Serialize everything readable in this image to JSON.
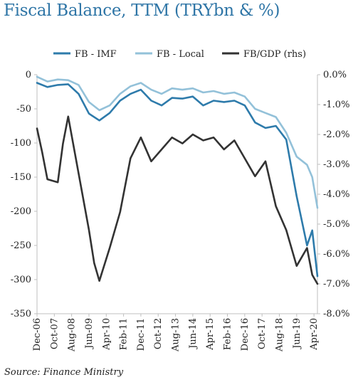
{
  "chart_data": {
    "type": "line",
    "title": "Fiscal Balance, TTM (TRYbn & %)",
    "source": "Source: Finance Ministry",
    "x_ticks": [
      "Dec-06",
      "Oct-07",
      "Aug-08",
      "Jun-09",
      "Apr-10",
      "Feb-11",
      "Dec-11",
      "Oct-12",
      "Aug-13",
      "Jun-14",
      "Apr-15",
      "Feb-16",
      "Dec-16",
      "Oct-17",
      "Aug-18",
      "Jun-19",
      "Apr-20"
    ],
    "y_left": {
      "ylim": [
        -350,
        0
      ],
      "ticks": [
        "0",
        "-50",
        "-100",
        "-150",
        "-200",
        "-250",
        "-300",
        "-350"
      ]
    },
    "y_right": {
      "ylim": [
        -8.0,
        0.0
      ],
      "ticks": [
        "0.0%",
        "-1.0%",
        "-2.0%",
        "-3.0%",
        "-4.0%",
        "-5.0%",
        "-6.0%",
        "-7.0%",
        "-8.0%"
      ]
    },
    "legend": {
      "position": "top",
      "items": [
        "FB - IMF",
        "FB - Local",
        "FB/GDP (rhs)"
      ]
    },
    "colors": {
      "imf": "#2e7bab",
      "local": "#93c1d9",
      "gdp": "#333333",
      "axis": "#bfbfbf"
    },
    "x_start": "Dec-06",
    "x_end": "Jun-20",
    "series": [
      {
        "name": "FB - IMF",
        "axis": "left",
        "points": [
          [
            "Dec-06",
            -12
          ],
          [
            "Jun-07",
            -18
          ],
          [
            "Dec-07",
            -15
          ],
          [
            "Jun-08",
            -14
          ],
          [
            "Dec-08",
            -28
          ],
          [
            "Jun-09",
            -57
          ],
          [
            "Dec-09",
            -67
          ],
          [
            "Jun-10",
            -56
          ],
          [
            "Dec-10",
            -38
          ],
          [
            "Jun-11",
            -28
          ],
          [
            "Dec-11",
            -22
          ],
          [
            "Jun-12",
            -38
          ],
          [
            "Dec-12",
            -45
          ],
          [
            "Jun-13",
            -34
          ],
          [
            "Dec-13",
            -35
          ],
          [
            "Jun-14",
            -32
          ],
          [
            "Dec-14",
            -45
          ],
          [
            "Jun-15",
            -38
          ],
          [
            "Dec-15",
            -40
          ],
          [
            "Jun-16",
            -38
          ],
          [
            "Dec-16",
            -45
          ],
          [
            "Jun-17",
            -70
          ],
          [
            "Dec-17",
            -78
          ],
          [
            "Jun-18",
            -75
          ],
          [
            "Dec-18",
            -95
          ],
          [
            "Jun-19",
            -178
          ],
          [
            "Dec-19",
            -250
          ],
          [
            "Mar-20",
            -228
          ],
          [
            "Jun-20",
            -295
          ]
        ]
      },
      {
        "name": "FB - Local",
        "axis": "left",
        "points": [
          [
            "Dec-06",
            -3
          ],
          [
            "Jun-07",
            -10
          ],
          [
            "Dec-07",
            -7
          ],
          [
            "Jun-08",
            -8
          ],
          [
            "Dec-08",
            -15
          ],
          [
            "Jun-09",
            -40
          ],
          [
            "Dec-09",
            -52
          ],
          [
            "Jun-10",
            -45
          ],
          [
            "Dec-10",
            -28
          ],
          [
            "Jun-11",
            -17
          ],
          [
            "Dec-11",
            -12
          ],
          [
            "Jun-12",
            -22
          ],
          [
            "Dec-12",
            -28
          ],
          [
            "Jun-13",
            -20
          ],
          [
            "Dec-13",
            -22
          ],
          [
            "Jun-14",
            -20
          ],
          [
            "Dec-14",
            -26
          ],
          [
            "Jun-15",
            -24
          ],
          [
            "Dec-15",
            -28
          ],
          [
            "Jun-16",
            -26
          ],
          [
            "Dec-16",
            -32
          ],
          [
            "Jun-17",
            -50
          ],
          [
            "Dec-17",
            -56
          ],
          [
            "Jun-18",
            -62
          ],
          [
            "Dec-18",
            -85
          ],
          [
            "Jun-19",
            -120
          ],
          [
            "Dec-19",
            -132
          ],
          [
            "Mar-20",
            -150
          ],
          [
            "Jun-20",
            -195
          ]
        ]
      },
      {
        "name": "FB/GDP (rhs)",
        "axis": "right",
        "points": [
          [
            "Dec-06",
            -1.8
          ],
          [
            "Mar-07",
            -2.6
          ],
          [
            "Jun-07",
            -3.5
          ],
          [
            "Dec-07",
            -3.6
          ],
          [
            "Mar-08",
            -2.3
          ],
          [
            "Jun-08",
            -1.4
          ],
          [
            "Dec-08",
            -3.3
          ],
          [
            "Jun-09",
            -5.2
          ],
          [
            "Sep-09",
            -6.3
          ],
          [
            "Dec-09",
            -6.9
          ],
          [
            "Jun-10",
            -5.8
          ],
          [
            "Dec-10",
            -4.6
          ],
          [
            "Jun-11",
            -2.8
          ],
          [
            "Dec-11",
            -2.1
          ],
          [
            "Jun-12",
            -2.9
          ],
          [
            "Dec-12",
            -2.5
          ],
          [
            "Jun-13",
            -2.1
          ],
          [
            "Dec-13",
            -2.3
          ],
          [
            "Jun-14",
            -2.0
          ],
          [
            "Dec-14",
            -2.2
          ],
          [
            "Jun-15",
            -2.1
          ],
          [
            "Dec-15",
            -2.5
          ],
          [
            "Jun-16",
            -2.2
          ],
          [
            "Dec-16",
            -2.8
          ],
          [
            "Jun-17",
            -3.4
          ],
          [
            "Dec-17",
            -2.9
          ],
          [
            "Jun-18",
            -4.4
          ],
          [
            "Dec-18",
            -5.2
          ],
          [
            "Jun-19",
            -6.4
          ],
          [
            "Dec-19",
            -5.8
          ],
          [
            "Mar-20",
            -6.7
          ],
          [
            "Jun-20",
            -7.0
          ]
        ]
      }
    ]
  }
}
